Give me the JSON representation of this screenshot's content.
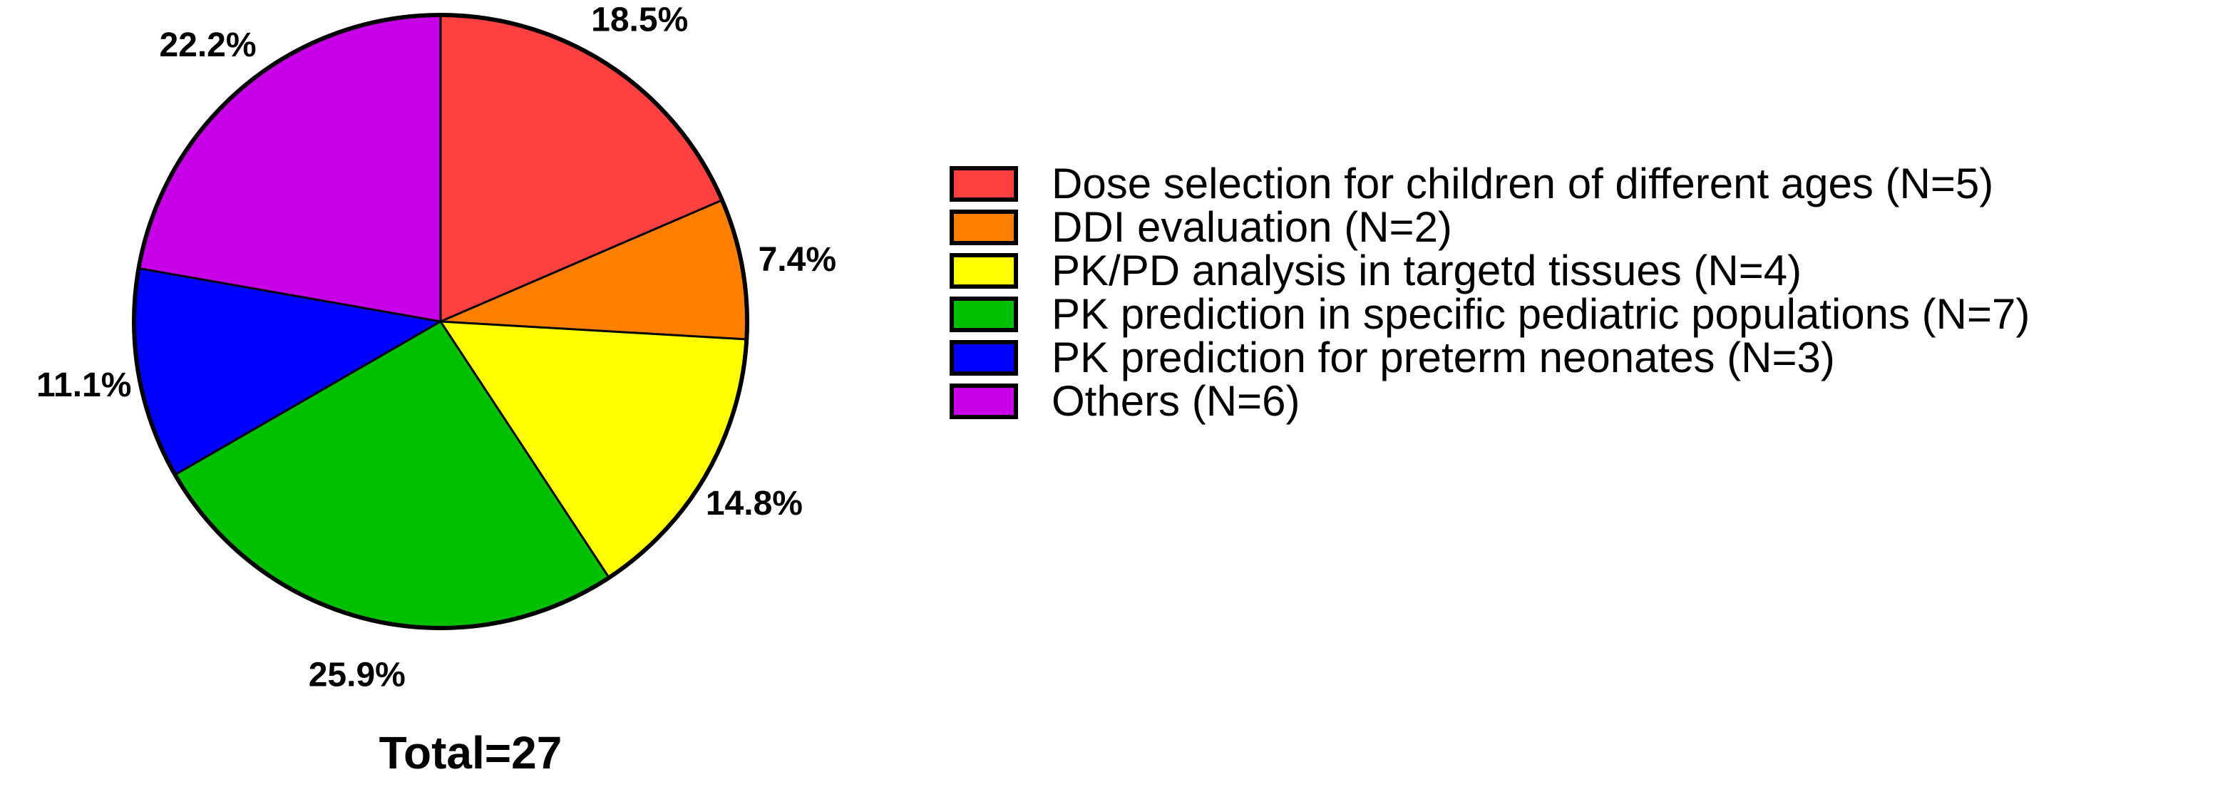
{
  "chart_data": {
    "type": "pie",
    "total_label": "Total=27",
    "legend_position": "right",
    "slices": [
      {
        "label": "Dose selection for children of different ages (N=5)",
        "value": 5,
        "percent_label": "18.5%",
        "color": "#FF4040"
      },
      {
        "label": "DDI evaluation (N=2)",
        "value": 2,
        "percent_label": "7.4%",
        "color": "#FF8000"
      },
      {
        "label": "PK/PD analysis in targetd tissues (N=4)",
        "value": 4,
        "percent_label": "14.8%",
        "color": "#FFFF00"
      },
      {
        "label": "PK prediction in specific pediatric populations (N=7)",
        "value": 7,
        "percent_label": "25.9%",
        "color": "#00C000"
      },
      {
        "label": "PK prediction for preterm neonates (N=3)",
        "value": 3,
        "percent_label": "11.1%",
        "color": "#0000FF"
      },
      {
        "label": "Others (N=6)",
        "value": 6,
        "percent_label": "22.2%",
        "color": "#C800E8"
      }
    ]
  }
}
